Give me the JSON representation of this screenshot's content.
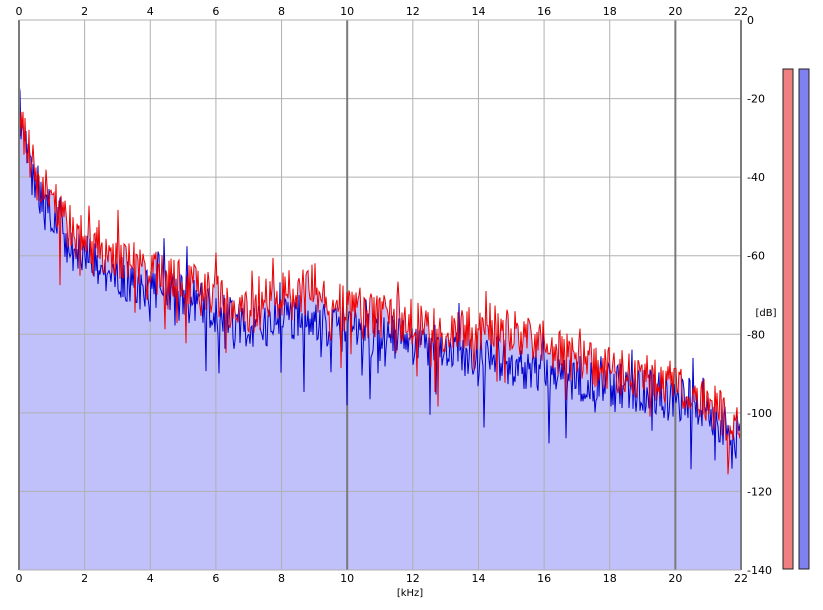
{
  "colors": {
    "background": "#ffffff",
    "grid": "#b0b0b0",
    "grid_major": "#7a7a7a",
    "axis": "#000000",
    "fill_area": "#c0c0fb",
    "left_channel": "#ee0000",
    "right_channel": "#0000cc",
    "left_meter": "#f08080",
    "right_meter": "#8080f0"
  },
  "chart_data": {
    "type": "area",
    "title": "",
    "xlabel": "[kHz]",
    "ylabel": "[dB]",
    "xlim": [
      0,
      22
    ],
    "ylim": [
      -140,
      0
    ],
    "x_ticks": [
      "0",
      "2",
      "4",
      "6",
      "8",
      "10",
      "12",
      "14",
      "16",
      "18",
      "20",
      "22"
    ],
    "y_ticks": [
      "0",
      "-20",
      "-40",
      "-60",
      "-80",
      "-100",
      "-120",
      "-140"
    ],
    "grid": true,
    "legend": "none",
    "series": [
      {
        "color": "#ee0000",
        "x": [
          0,
          0.25,
          0.5,
          1,
          1.5,
          2,
          2.5,
          3,
          3.5,
          4,
          4.5,
          5,
          5.5,
          6,
          6.5,
          7,
          7.5,
          8,
          8.5,
          9,
          9.5,
          10,
          10.5,
          11,
          11.5,
          12,
          12.5,
          13,
          13.5,
          14,
          14.5,
          15,
          15.5,
          16,
          16.5,
          17,
          17.5,
          18,
          18.5,
          19,
          19.5,
          20,
          20.5,
          21,
          21.5,
          22
        ],
        "values": [
          -22,
          -32,
          -40,
          -46,
          -52,
          -55,
          -58,
          -60,
          -62,
          -64,
          -66,
          -67,
          -68,
          -70,
          -72,
          -74,
          -73,
          -70,
          -69,
          -70,
          -72,
          -74,
          -75,
          -75,
          -76,
          -77,
          -78,
          -79,
          -79,
          -78,
          -78,
          -80,
          -81,
          -83,
          -85,
          -87,
          -88,
          -89,
          -90,
          -91,
          -92,
          -93,
          -95,
          -97,
          -101,
          -104
        ]
      },
      {
        "color": "#0000cc",
        "x": [
          0,
          0.25,
          0.5,
          1,
          1.5,
          2,
          2.5,
          3,
          3.5,
          4,
          4.5,
          5,
          5.5,
          6,
          6.5,
          7,
          7.5,
          8,
          8.5,
          9,
          9.5,
          10,
          10.5,
          11,
          11.5,
          12,
          12.5,
          13,
          13.5,
          14,
          14.5,
          15,
          15.5,
          16,
          16.5,
          17,
          17.5,
          18,
          18.5,
          19,
          19.5,
          20,
          20.5,
          21,
          21.5,
          22
        ],
        "values": [
          -22,
          -34,
          -44,
          -50,
          -57,
          -60,
          -63,
          -65,
          -67,
          -68,
          -70,
          -71,
          -72,
          -74,
          -76,
          -78,
          -77,
          -76,
          -76,
          -77,
          -78,
          -79,
          -80,
          -81,
          -81,
          -82,
          -83,
          -84,
          -85,
          -85,
          -86,
          -87,
          -88,
          -89,
          -90,
          -91,
          -92,
          -93,
          -93,
          -94,
          -95,
          -96,
          -97,
          -99,
          -103,
          -107
        ]
      }
    ]
  }
}
